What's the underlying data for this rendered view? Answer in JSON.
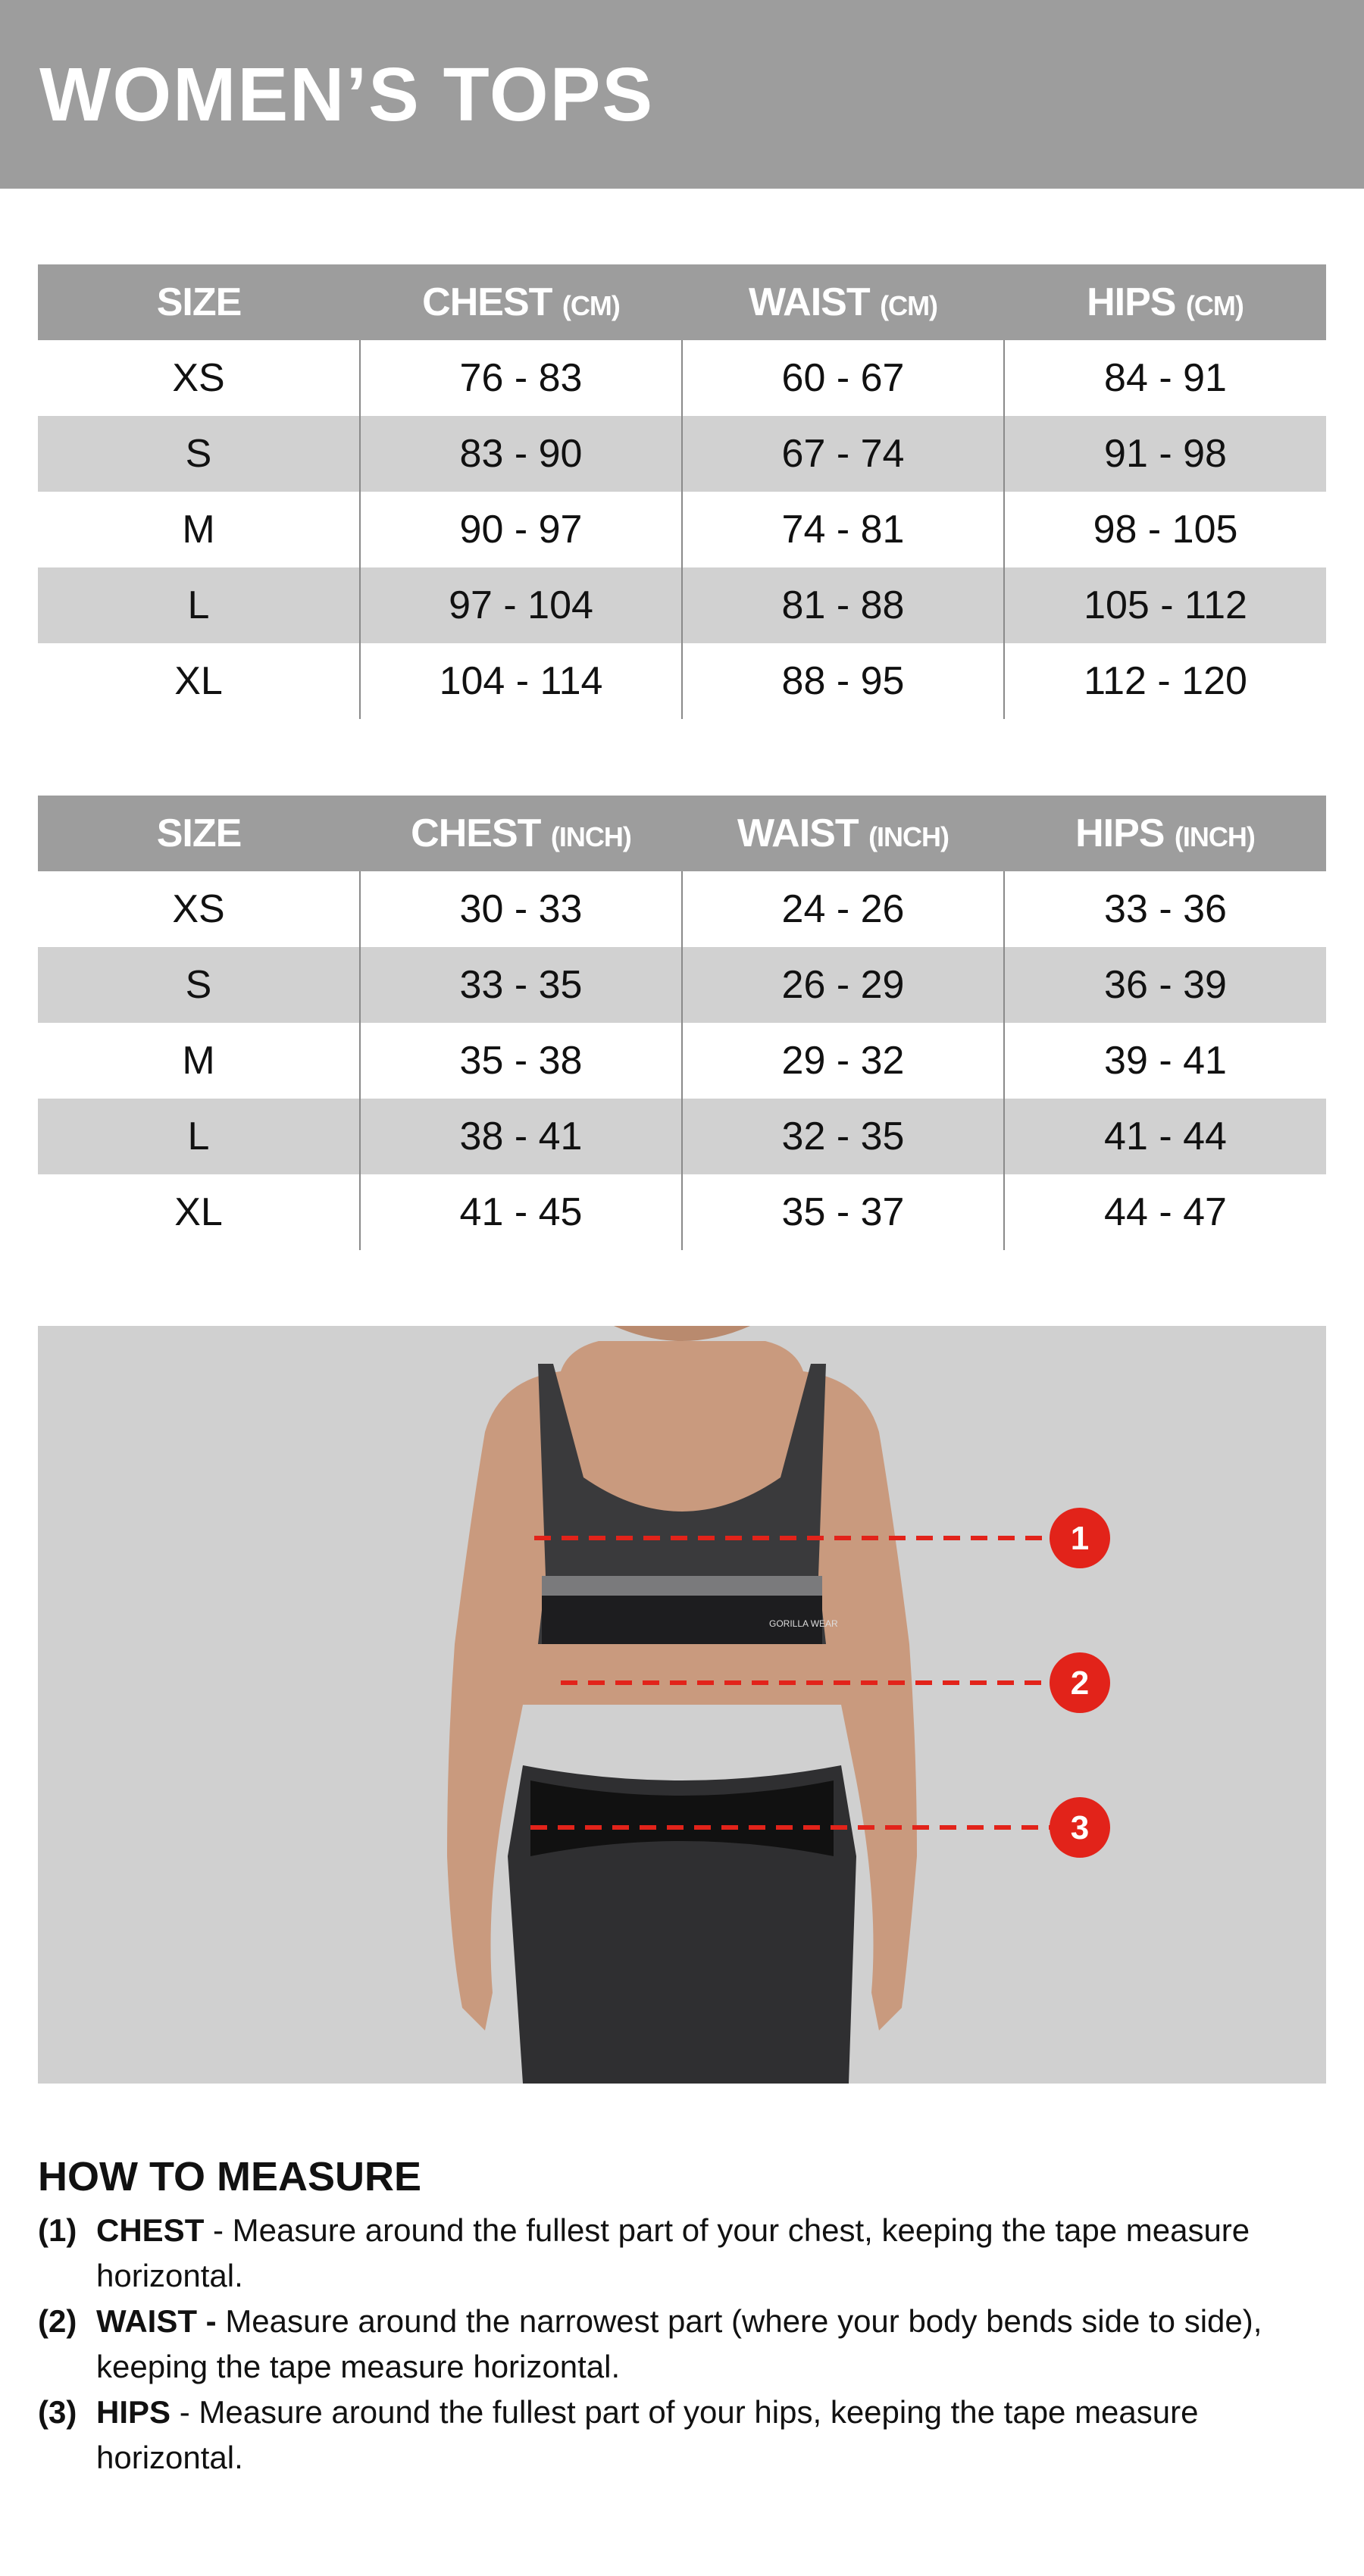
{
  "title": "WOMEN’S TOPS",
  "tables": [
    {
      "headers": [
        {
          "label": "SIZE",
          "unit": ""
        },
        {
          "label": "CHEST",
          "unit": "(CM)"
        },
        {
          "label": "WAIST",
          "unit": "(CM)"
        },
        {
          "label": "HIPS",
          "unit": "(CM)"
        }
      ],
      "rows": [
        [
          "XS",
          "76 - 83",
          "60 - 67",
          "84 - 91"
        ],
        [
          "S",
          "83 - 90",
          "67 - 74",
          "91 - 98"
        ],
        [
          "M",
          "90 - 97",
          "74 - 81",
          "98 - 105"
        ],
        [
          "L",
          "97 - 104",
          "81 - 88",
          "105 - 112"
        ],
        [
          "XL",
          "104 - 114",
          "88 - 95",
          "112 - 120"
        ]
      ]
    },
    {
      "headers": [
        {
          "label": "SIZE",
          "unit": ""
        },
        {
          "label": "CHEST",
          "unit": "(INCH)"
        },
        {
          "label": "WAIST",
          "unit": "(INCH)"
        },
        {
          "label": "HIPS",
          "unit": "(INCH)"
        }
      ],
      "rows": [
        [
          "XS",
          "30 - 33",
          "24 - 26",
          "33 - 36"
        ],
        [
          "S",
          "33 - 35",
          "26 - 29",
          "36 - 39"
        ],
        [
          "M",
          "35 - 38",
          "29 - 32",
          "39 - 41"
        ],
        [
          "L",
          "38 - 41",
          "32 - 35",
          "41 - 44"
        ],
        [
          "XL",
          "41 - 45",
          "35 - 37",
          "44 - 47"
        ]
      ]
    }
  ],
  "figure": {
    "markers": [
      "1",
      "2",
      "3"
    ],
    "marker_color": "#e2231a",
    "brand_text": "GORILLA WEAR"
  },
  "how_to": {
    "title": "HOW TO MEASURE",
    "steps": [
      {
        "num": "(1)",
        "name": "CHEST",
        "text": " - Measure around the fullest part of your chest, keeping the tape measure horizontal."
      },
      {
        "num": "(2)",
        "name": "WAIST -",
        "text": " Measure around the narrowest part (where your body bends side to side), keeping the tape measure horizontal."
      },
      {
        "num": "(3)",
        "name": "HIPS",
        "text": " - Measure around the fullest part of your hips, keeping the tape measure horizontal."
      }
    ]
  },
  "colors": {
    "header_gray": "#9d9d9d",
    "row_alt": "#d1d1d1",
    "accent_red": "#e2231a"
  }
}
